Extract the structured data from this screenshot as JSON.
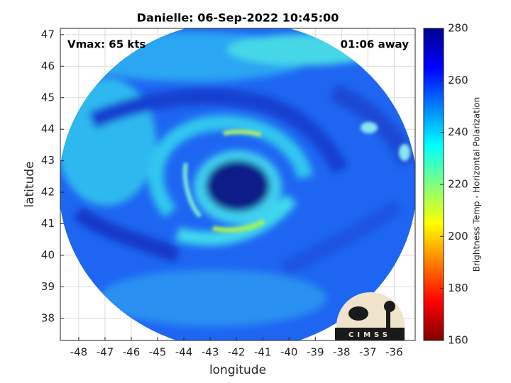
{
  "chart_data": {
    "type": "image",
    "title": "Danielle: 06-Sep-2022 10:45:00",
    "annotations": [
      "Vmax: 65 kts",
      "01:06 away"
    ],
    "x_label": "longitude",
    "y_label": "latitude",
    "xlim": [
      -48.7,
      -35.2
    ],
    "ylim": [
      37.3,
      47.2
    ],
    "xticks": [
      -48,
      -47,
      -46,
      -45,
      -44,
      -43,
      -42,
      -41,
      -40,
      -39,
      -38,
      -37,
      -36
    ],
    "yticks": [
      38,
      39,
      40,
      41,
      42,
      43,
      44,
      45,
      46,
      47
    ],
    "grid": true,
    "colorbar": {
      "label": "Brightness Temp - Horizontal Polarization",
      "lim": [
        160,
        280
      ],
      "ticks": [
        160,
        180,
        200,
        220,
        240,
        260,
        280
      ],
      "colormap": "jet"
    },
    "logo": "CIMSS"
  }
}
